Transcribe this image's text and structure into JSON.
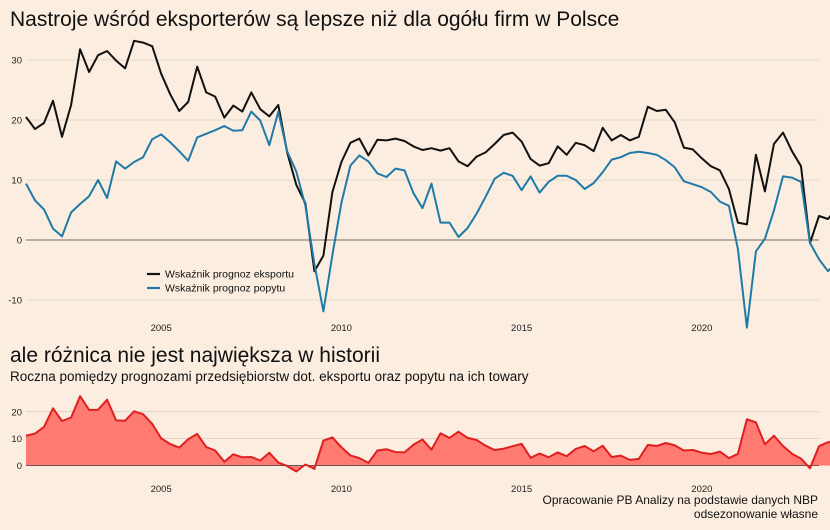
{
  "chart_data": [
    {
      "type": "line",
      "title": "Nastroje wśród eksporterów są lepsze niż dla ogółu firm w Polsce",
      "x_start": 2001.25,
      "x_step": 0.25,
      "ylim": [
        -12,
        34
      ],
      "yticks": [
        -10,
        0,
        10,
        20,
        30
      ],
      "xticks": [
        2005,
        2010,
        2015,
        2020
      ],
      "grid": true,
      "legend": "bottom-left",
      "series": [
        {
          "name": "Wskaźnik prognoz eksportu",
          "color": "#111111",
          "values": [
            20.5,
            18.5,
            19.5,
            23.2,
            17.2,
            22.5,
            31.8,
            28,
            30.8,
            31.5,
            29.9,
            28.6,
            33.2,
            32.9,
            32.3,
            27.7,
            24.3,
            21.5,
            23,
            28.9,
            24.6,
            23.9,
            20.4,
            22.4,
            21.4,
            24.6,
            21.8,
            20.6,
            22.5,
            14.5,
            9.2,
            6.1,
            -5.2,
            -2.6,
            8,
            13,
            16.2,
            16.9,
            14.1,
            16.7,
            16.6,
            16.9,
            16.5,
            15.6,
            15,
            15.3,
            14.9,
            15.3,
            13.1,
            12.3,
            13.9,
            14.6,
            16,
            17.5,
            17.9,
            16.4,
            13.5,
            12.4,
            12.8,
            15.6,
            14.2,
            16.2,
            15.8,
            14.8,
            18.7,
            16.6,
            17.5,
            16.6,
            17.2,
            22.2,
            21.5,
            21.7,
            19.6,
            15.4,
            15.1,
            13.6,
            12.3,
            11.6,
            8.5,
            2.9,
            2.6,
            14.2,
            8.1,
            16,
            17.9,
            14.8,
            12.3,
            -0.5,
            4,
            3.5,
            5.4
          ]
        },
        {
          "name": "Wskaźnik prognoz popytu",
          "color": "#1f7aa8",
          "values": [
            9.4,
            6.6,
            5.1,
            1.9,
            0.6,
            4.6,
            6,
            7.3,
            10,
            7,
            13.1,
            11.9,
            13,
            13.8,
            16.8,
            17.6,
            16.3,
            14.8,
            13.2,
            17.1,
            17.7,
            18.3,
            19,
            18.2,
            18.3,
            21.4,
            19.9,
            15.8,
            21.4,
            14.7,
            11.4,
            5.7,
            -4,
            -11.9,
            -2.5,
            6.2,
            12.4,
            14.1,
            13.1,
            11.1,
            10.5,
            11.9,
            11.6,
            7.8,
            5.3,
            9.4,
            2.9,
            2.9,
            0.5,
            2,
            4.4,
            7.2,
            10.2,
            11.2,
            10.7,
            8.3,
            10.6,
            7.9,
            9.7,
            10.7,
            10.7,
            10,
            8.5,
            9.5,
            11.3,
            13.4,
            13.8,
            14.5,
            14.7,
            14.5,
            14.2,
            13.3,
            12.1,
            9.8,
            9.3,
            8.8,
            8,
            6.4,
            5.7,
            -1.5,
            -14.6,
            -1.9,
            0.2,
            4.9,
            10.6,
            10.4,
            9.7,
            -0.5,
            -3.2,
            -5.2,
            -3.7
          ]
        }
      ]
    },
    {
      "type": "area",
      "title": "ale różnica nie jest największa w historii",
      "subtitle": "Roczna pomiędzy prognozami przedsiębiorstw dot. eksportu oraz popytu na ich towary",
      "x_start": 2001.25,
      "x_step": 0.25,
      "ylim": [
        -3.5,
        27
      ],
      "yticks": [
        0,
        10,
        20
      ],
      "xticks": [
        2005,
        2010,
        2015,
        2020
      ],
      "grid": true,
      "series": [
        {
          "name": "",
          "color": "#e02020",
          "fill": "#ff7b72",
          "values": [
            11.1,
            11.9,
            14.4,
            21.3,
            16.6,
            17.9,
            25.8,
            20.7,
            20.8,
            24.5,
            16.8,
            16.7,
            20.2,
            19.1,
            15.5,
            10.1,
            8,
            6.7,
            9.8,
            11.8,
            6.9,
            5.6,
            1.4,
            4.2,
            3.1,
            3.2,
            1.9,
            4.8,
            1.1,
            -0.2,
            -2.2,
            0.4,
            -1.2,
            9.3,
            10.5,
            6.8,
            3.8,
            2.8,
            1,
            5.6,
            6.1,
            5,
            4.9,
            7.8,
            9.7,
            5.9,
            12,
            10.3,
            12.6,
            10.3,
            9.5,
            7.4,
            5.8,
            6.3,
            7.2,
            8.1,
            2.9,
            4.5,
            3.1,
            4.9,
            3.5,
            6.2,
            7.3,
            5.3,
            7.4,
            3.2,
            3.7,
            2.1,
            2.5,
            7.7,
            7.3,
            8.4,
            7.5,
            5.6,
            5.8,
            4.8,
            4.3,
            5.2,
            2.8,
            4.4,
            17.2,
            16.1,
            7.9,
            11.1,
            7.3,
            4.4,
            2.6,
            -1,
            7.2,
            8.7,
            9.1
          ]
        }
      ]
    }
  ],
  "footer": {
    "source": "Opracowanie PB Analizy na podstawie danych NBP",
    "note": "odsezonowanie własne"
  }
}
